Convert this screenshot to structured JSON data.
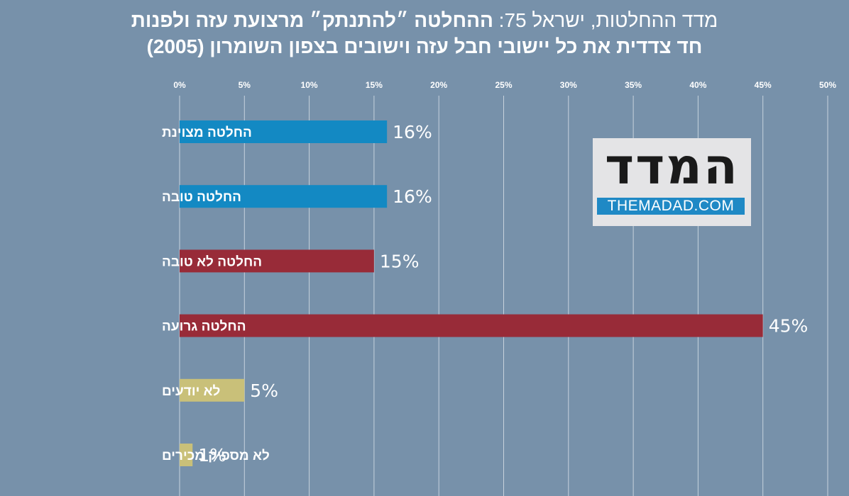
{
  "title_prefix": "מדד ההחלטות, ישראל 75: ",
  "title_line1_bold": "ההחלטה ״להתנתק״ מרצועת עזה ולפנות",
  "title_line2": "חד צדדית את כל יישובי חבל עזה וישובים בצפון השומרון (2005)",
  "logo": {
    "word": "המדד",
    "url": "THEMADAD.COM"
  },
  "colors": {
    "background": "#7791aa",
    "blue": "#1389c3",
    "red": "#982b38",
    "yellow": "#c9c079",
    "grid": "#c7d2dd",
    "text": "#ffffff"
  },
  "chart_data": {
    "type": "bar",
    "orientation": "horizontal",
    "categories": [
      "החלטה מצוינת",
      "החלטה טובה",
      "החלטה לא טובה",
      "החלטה גרועה",
      "לא יודעים",
      "לא מספיק מכירים"
    ],
    "values": [
      16,
      16,
      15,
      45,
      5,
      1
    ],
    "value_labels": [
      "16%",
      "16%",
      "15%",
      "45%",
      "5%",
      "1%"
    ],
    "bar_colors": [
      "blue",
      "blue",
      "red",
      "red",
      "yellow",
      "yellow"
    ],
    "x_ticks": [
      "0%",
      "5%",
      "10%",
      "15%",
      "20%",
      "25%",
      "30%",
      "35%",
      "40%",
      "45%",
      "50%"
    ],
    "xlim": [
      0,
      50
    ],
    "grid": true,
    "axis_position": "top"
  }
}
